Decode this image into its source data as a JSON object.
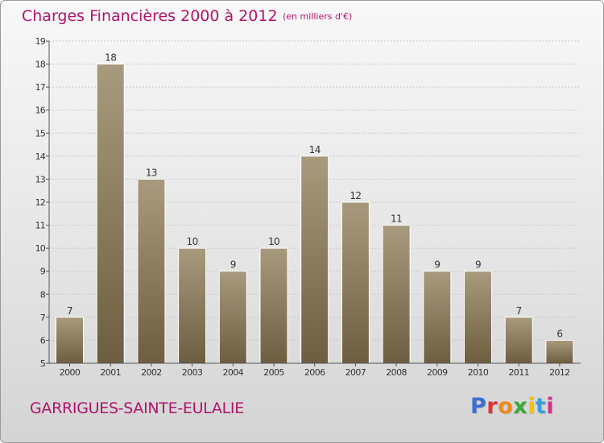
{
  "title": "Charges Financières 2000 à 2012",
  "unit_note": "(en milliers d'€)",
  "location": "GARRIGUES-SAINTE-EULALIE",
  "logo": {
    "text": "Proxiti",
    "letter_colors": [
      "#3b6fd4",
      "#e03434",
      "#f08a1c",
      "#3aaa35",
      "#f2c21b",
      "#3b9fd4",
      "#d4308e"
    ]
  },
  "colors": {
    "title": "#b0146a",
    "bar_light": "#a89a7d",
    "bar_dark": "#6e5e41",
    "bar_edge": "#ffffff",
    "axis_text": "#333333",
    "grid": "#c8c8c8"
  },
  "chart_data": {
    "type": "bar",
    "title": "Charges Financières 2000 à 2012",
    "subtitle": "(en milliers d'€)",
    "xlabel": "",
    "ylabel": "",
    "categories": [
      "2000",
      "2001",
      "2002",
      "2003",
      "2004",
      "2005",
      "2006",
      "2007",
      "2008",
      "2009",
      "2010",
      "2011",
      "2012"
    ],
    "values": [
      7,
      18,
      13,
      10,
      9,
      10,
      14,
      12,
      11,
      9,
      9,
      7,
      6
    ],
    "ylim": [
      5,
      19
    ],
    "yticks": [
      5,
      6,
      7,
      8,
      9,
      10,
      11,
      12,
      13,
      14,
      15,
      16,
      17,
      18,
      19
    ],
    "grid": true,
    "data_labels": true
  }
}
